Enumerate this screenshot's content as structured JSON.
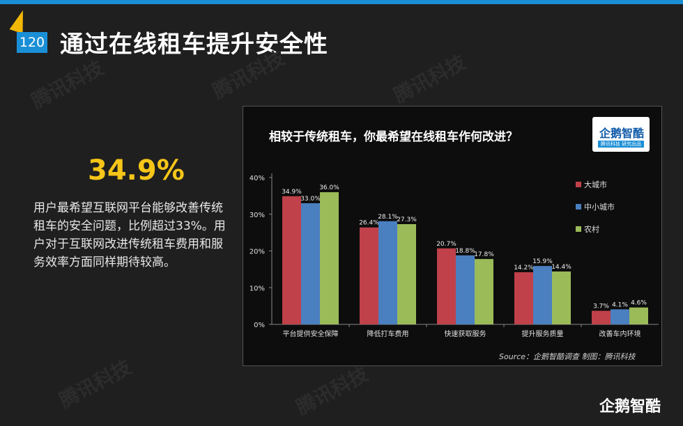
{
  "header": {
    "slide_number": "120",
    "title": "通过在线租车提升安全性"
  },
  "highlight": {
    "stat": "34.9%",
    "text": "用户最希望互联网平台能够改善传统租车的安全问题，比例超过33%。用户对于互联网改进传统租车费用和服务效率方面同样期待较高。"
  },
  "watermarks": [
    "腾讯科技",
    "腾讯科技",
    "腾讯科技",
    "腾讯科技",
    "腾讯科技"
  ],
  "chart_data": {
    "type": "bar",
    "title": "相较于传统租车，你最希望在线租车作何改进？",
    "categories": [
      "平台提供安全保障",
      "降低打车费用",
      "快速获取服务",
      "提升服务质量",
      "改善车内环境"
    ],
    "series": [
      {
        "name": "大城市",
        "color": "#c0414a",
        "values": [
          34.9,
          26.4,
          20.7,
          14.2,
          3.7
        ]
      },
      {
        "name": "中小城市",
        "color": "#4a7fc0",
        "values": [
          33.0,
          28.1,
          18.8,
          15.9,
          4.1
        ]
      },
      {
        "name": "农村",
        "color": "#9bbb59",
        "values": [
          36.0,
          27.3,
          17.8,
          14.4,
          4.6
        ]
      }
    ],
    "value_labels": [
      [
        "34.9%",
        "26.4%",
        "20.7%",
        "14.2%",
        "3.7%"
      ],
      [
        "33.0%",
        "28.1%",
        "18.8%",
        "15.9%",
        "4.1%"
      ],
      [
        "36.0%",
        "27.3%",
        "17.8%",
        "14.4%",
        "4.6%"
      ]
    ],
    "yticks": [
      0,
      10,
      20,
      30,
      40
    ],
    "ytick_labels": [
      "0%",
      "10%",
      "20%",
      "30%",
      "40%"
    ],
    "ylim": [
      0,
      40
    ],
    "legend_position": "right",
    "grid": false,
    "source": "Source：企鹅智酷调查  制图：腾讯科技"
  },
  "logo": {
    "name": "企鹅智酷",
    "tagline": "腾讯科技 研究出品"
  },
  "footer": {
    "brand": "企鹅智酷"
  }
}
